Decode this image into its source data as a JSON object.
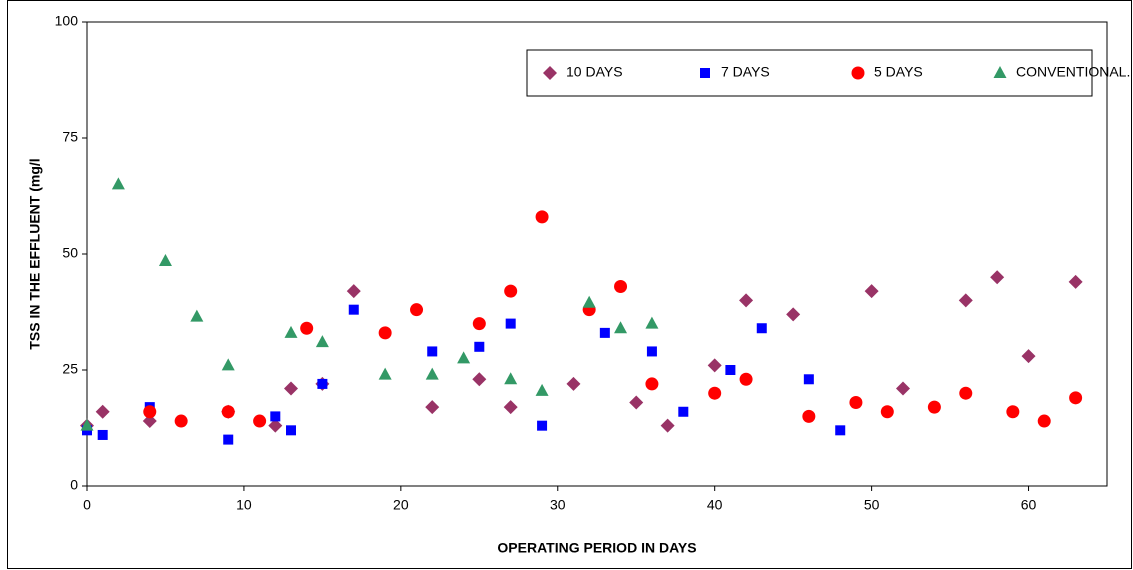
{
  "chart_data": {
    "type": "scatter",
    "xlabel": "OPERATING PERIOD IN DAYS",
    "ylabel": "TSS IN THE EFFLUENT (mg/l",
    "xlim": [
      0,
      65
    ],
    "xticks": [
      0,
      10,
      20,
      30,
      40,
      50,
      60
    ],
    "ylim": [
      0,
      100
    ],
    "yticks": [
      0,
      25,
      50,
      75,
      100
    ],
    "legend": "top-right",
    "series": [
      {
        "name": "10 DAYS",
        "color": "#993366",
        "marker": "diamond",
        "x": [
          0,
          1,
          4,
          9,
          12,
          13,
          15,
          17,
          22,
          25,
          27,
          31,
          35,
          37,
          40,
          42,
          45,
          50,
          52,
          56,
          58,
          60,
          63
        ],
        "values": [
          13,
          16,
          14,
          16,
          13,
          21,
          22,
          42,
          17,
          23,
          17,
          22,
          18,
          13,
          26,
          40,
          37,
          42,
          21,
          40,
          45,
          28,
          44
        ]
      },
      {
        "name": "7 DAYS",
        "color": "#0000ff",
        "marker": "square",
        "x": [
          0,
          1,
          4,
          9,
          12,
          13,
          15,
          17,
          22,
          25,
          27,
          29,
          33,
          36,
          38,
          41,
          43,
          46,
          48
        ],
        "values": [
          12,
          11,
          17,
          10,
          15,
          12,
          22,
          38,
          29,
          30,
          35,
          13,
          33,
          29,
          16,
          25,
          34,
          23,
          12
        ]
      },
      {
        "name": "5 DAYS",
        "color": "#ff0000",
        "marker": "circle",
        "x": [
          4,
          6,
          9,
          11,
          14,
          19,
          21,
          25,
          27,
          29,
          32,
          34,
          36,
          40,
          42,
          46,
          49,
          51,
          54,
          56,
          59,
          61,
          63
        ],
        "values": [
          16,
          14,
          16,
          14,
          34,
          33,
          38,
          35,
          42,
          58,
          38,
          43,
          22,
          20,
          23,
          15,
          18,
          16,
          17,
          20,
          16,
          14,
          19
        ]
      },
      {
        "name": "CONVENTIONAL.",
        "color": "#339966",
        "marker": "triangle",
        "x": [
          0,
          2,
          5,
          7,
          9,
          13,
          15,
          19,
          22,
          24,
          27,
          29,
          32,
          34,
          36
        ],
        "values": [
          13,
          65,
          48.5,
          36.5,
          26,
          33,
          31,
          24,
          24,
          27.5,
          23,
          20.5,
          39.5,
          34,
          35
        ]
      }
    ]
  }
}
